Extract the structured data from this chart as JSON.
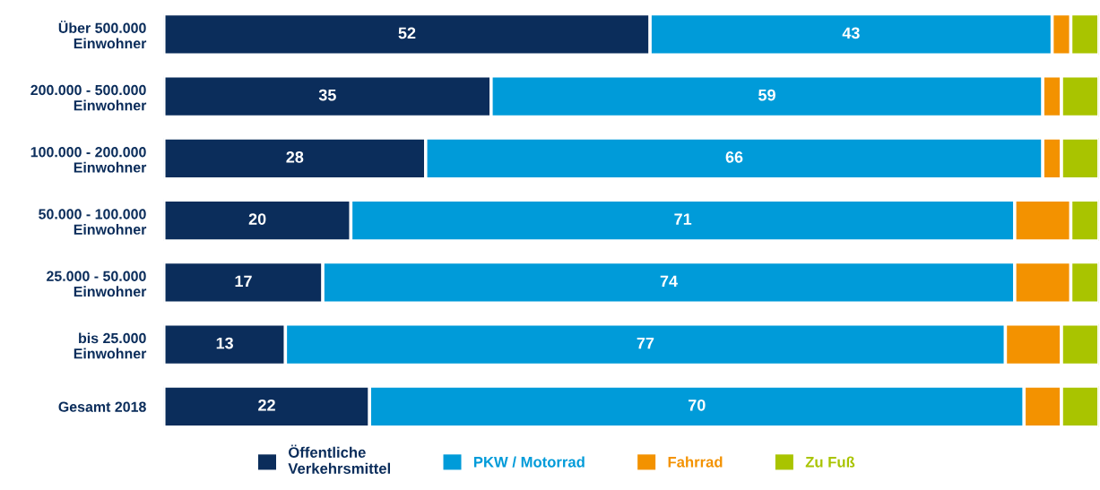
{
  "chart_data": {
    "type": "bar",
    "orientation": "horizontal",
    "stacked": true,
    "legend": "bottom",
    "grid": false,
    "tick_labels": "y",
    "categories": [
      "Über 500.000\nEinwohner",
      "200.000 - 500.000\nEinwohner",
      "100.000 - 200.000\nEinwohner",
      "50.000 - 100.000\nEinwohner",
      "25.000 - 50.000\nEinwohner",
      "bis 25.000\nEinwohner",
      "Gesamt 2018"
    ],
    "series": [
      {
        "name": "Öffentliche\nVerkehrsmittel",
        "color": "#0b2d5b",
        "values": [
          52,
          35,
          28,
          20,
          17,
          13,
          22
        ],
        "value_labels": [
          "52",
          "35",
          "28",
          "20",
          "17",
          "13",
          "22"
        ]
      },
      {
        "name": "PKW / Motorrad",
        "color": "#009bd9",
        "values": [
          43,
          59,
          66,
          71,
          74,
          77,
          70
        ],
        "value_labels": [
          "43",
          "59",
          "66",
          "71",
          "74",
          "77",
          "70"
        ]
      },
      {
        "name": "Fahrrad",
        "color": "#f39200",
        "values": [
          2,
          2,
          2,
          6,
          6,
          6,
          4
        ]
      },
      {
        "name": "Zu Fuß",
        "color": "#a9c400",
        "values": [
          3,
          4,
          4,
          3,
          3,
          4,
          4
        ]
      }
    ]
  }
}
